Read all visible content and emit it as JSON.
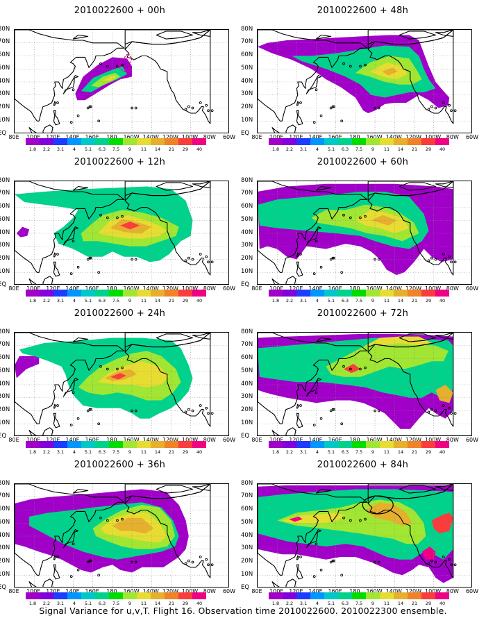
{
  "figure": {
    "caption": "Signal Variance for u,v,T. Flight 16. Observation time 2010022600. 2010022300 ensemble."
  },
  "panels": [
    {
      "title": "2010022600 + 00h",
      "lead_hours": 0
    },
    {
      "title": "2010022600 + 48h",
      "lead_hours": 48
    },
    {
      "title": "2010022600 + 12h",
      "lead_hours": 12
    },
    {
      "title": "2010022600 + 60h",
      "lead_hours": 60
    },
    {
      "title": "2010022600 + 24h",
      "lead_hours": 24
    },
    {
      "title": "2010022600 + 72h",
      "lead_hours": 72
    },
    {
      "title": "2010022600 + 36h",
      "lead_hours": 36
    },
    {
      "title": "2010022600 + 84h",
      "lead_hours": 84
    }
  ],
  "map": {
    "lon_labels": [
      "80E",
      "100E",
      "120E",
      "140E",
      "160E",
      "180",
      "160W",
      "140W",
      "120W",
      "100W",
      "80W",
      "60W"
    ],
    "lat_labels": [
      "80N",
      "70N",
      "60N",
      "50N",
      "40N",
      "30N",
      "20N",
      "10N",
      "EQ"
    ],
    "lon_range": [
      "80E",
      "60W"
    ],
    "lat_range": [
      "EQ",
      "80N"
    ],
    "gridlines": "dotted"
  },
  "colorbar": {
    "labels": [
      "1.8",
      "2.2",
      "3.1",
      "4",
      "5.1",
      "6.3",
      "7.5",
      "9",
      "11",
      "14",
      "21",
      "29",
      "40"
    ],
    "colors": [
      "#a000c8",
      "#8200dc",
      "#1e3cff",
      "#0096ff",
      "#00c8c8",
      "#00d28c",
      "#00dc00",
      "#a0e632",
      "#e6dc32",
      "#e6af2d",
      "#f08228",
      "#fa3c3c",
      "#f00082"
    ]
  },
  "map_colors": {
    "land_outline": "#000000",
    "dashed_contour": "#f00082"
  }
}
